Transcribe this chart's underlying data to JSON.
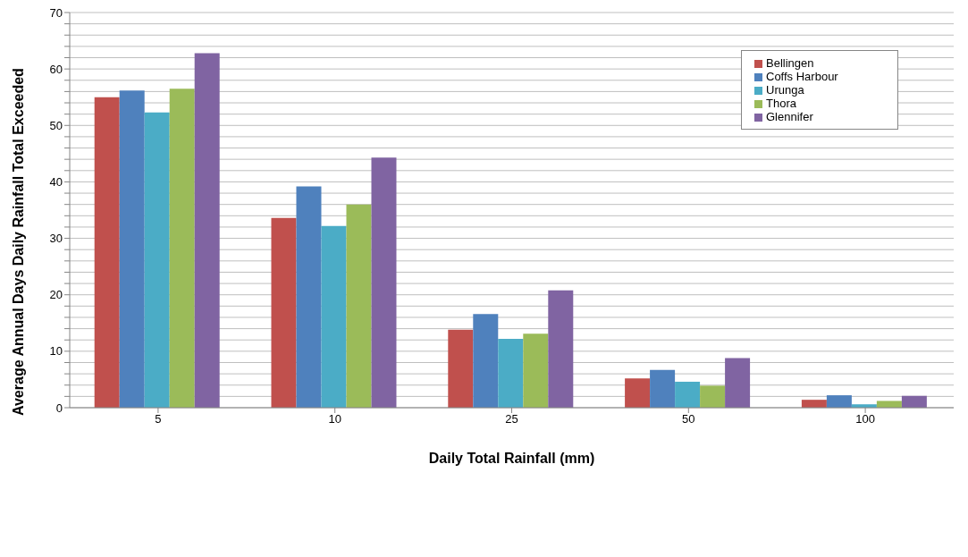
{
  "chart_data": {
    "type": "bar",
    "xlabel": "Daily Total Rainfall (mm)",
    "ylabel": "Average Annual Days Daily Rainfall Total Exceeded",
    "categories": [
      "5",
      "10",
      "25",
      "50",
      "100"
    ],
    "series": [
      {
        "name": "Bellingen",
        "color": "#c0504d",
        "values": [
          55.0,
          33.6,
          13.8,
          5.2,
          1.4
        ]
      },
      {
        "name": "Coffs Harbour",
        "color": "#4f81bd",
        "values": [
          56.2,
          39.2,
          16.6,
          6.7,
          2.2
        ]
      },
      {
        "name": "Urunga",
        "color": "#4bacc6",
        "values": [
          52.3,
          32.2,
          12.2,
          4.6,
          0.6
        ]
      },
      {
        "name": "Thora",
        "color": "#9bbb59",
        "values": [
          56.5,
          36.0,
          13.1,
          3.9,
          1.2
        ]
      },
      {
        "name": "Glennifer",
        "color": "#8064a2",
        "values": [
          62.8,
          44.3,
          20.8,
          8.8,
          2.1
        ]
      }
    ],
    "ylim": [
      0,
      70
    ],
    "yticks": [
      0,
      {
        "value": 2,
        "label": null
      },
      {
        "value": 4,
        "label": null
      },
      {
        "value": 6,
        "label": null
      },
      {
        "value": 8,
        "label": null
      },
      10,
      {
        "value": 12,
        "label": null
      },
      {
        "value": 14,
        "label": null
      },
      {
        "value": 16,
        "label": null
      },
      {
        "value": 18,
        "label": null
      },
      20,
      {
        "value": 22,
        "label": null
      },
      {
        "value": 24,
        "label": null
      },
      {
        "value": 26,
        "label": null
      },
      {
        "value": 28,
        "label": null
      },
      30,
      {
        "value": 32,
        "label": null
      },
      {
        "value": 34,
        "label": null
      },
      {
        "value": 36,
        "label": null
      },
      {
        "value": 38,
        "label": null
      },
      40,
      {
        "value": 42,
        "label": null
      },
      {
        "value": 44,
        "label": null
      },
      {
        "value": 46,
        "label": null
      },
      {
        "value": 48,
        "label": null
      },
      50,
      {
        "value": 52,
        "label": null
      },
      {
        "value": 54,
        "label": null
      },
      {
        "value": 56,
        "label": null
      },
      {
        "value": 58,
        "label": null
      },
      60,
      {
        "value": 62,
        "label": null
      },
      {
        "value": 64,
        "label": null
      },
      {
        "value": 66,
        "label": null
      },
      {
        "value": 68,
        "label": null
      },
      70
    ],
    "grid": "y",
    "legend": "top right"
  }
}
